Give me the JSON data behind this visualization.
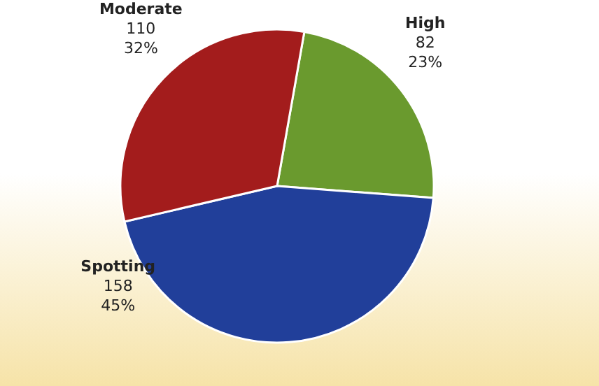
{
  "chart_data": {
    "type": "pie",
    "categories": [
      "High",
      "Spotting",
      "Moderate"
    ],
    "values": [
      82,
      158,
      110
    ],
    "colors": [
      "#6a9a2e",
      "#213f9a",
      "#a31c1c"
    ],
    "value_labels": [
      "82\n23%",
      "158\n45%",
      "110\n32%"
    ]
  }
}
